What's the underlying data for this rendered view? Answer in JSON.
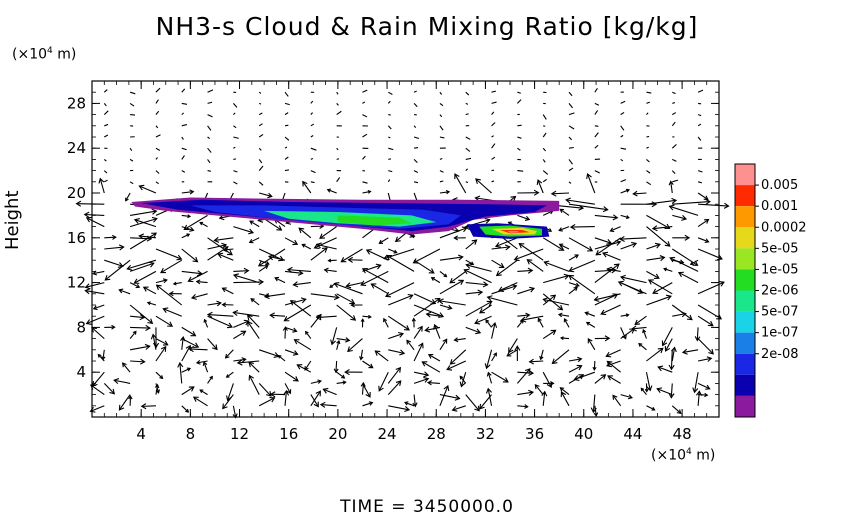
{
  "title": "NH3-s Cloud & Rain Mixing Ratio [kg/kg]",
  "y_unit_prefix": "(×10",
  "y_unit_exp": "4",
  "y_unit_suffix": " m)",
  "x_unit_prefix": "(×10",
  "x_unit_exp": "4",
  "x_unit_suffix": " m)",
  "time_label": "TIME  =  3450000.0",
  "colors": {
    "levels": [
      "#8b1a9e",
      "#0a00b0",
      "#1a28e6",
      "#1a7fe6",
      "#1ad3e6",
      "#1ae68a",
      "#22dd22",
      "#9be622",
      "#e6d81a",
      "#ff9900",
      "#ff2a00",
      "#ff9090"
    ]
  },
  "chart_data": {
    "type": "contour",
    "title": "NH3-s Cloud & Rain Mixing Ratio [kg/kg]",
    "xlabel": "",
    "ylabel": "Height",
    "xlim": [
      0,
      51
    ],
    "ylim": [
      0,
      30
    ],
    "xticks": [
      "4",
      "8",
      "12",
      "16",
      "20",
      "24",
      "28",
      "32",
      "36",
      "40",
      "44",
      "48"
    ],
    "yticks": [
      "4",
      "8",
      "12",
      "16",
      "20",
      "24",
      "28"
    ],
    "colorbar_labels": [
      "0.005",
      "0.001",
      "0.0002",
      "5e-05",
      "1e-05",
      "2e-06",
      "5e-07",
      "1e-07",
      "2e-08"
    ],
    "cloud_layer": {
      "x_range": [
        3,
        38
      ],
      "y_range": [
        16,
        19.3
      ]
    },
    "max_region": {
      "x_range": [
        32,
        37
      ],
      "y_range": [
        16,
        17.2
      ]
    },
    "vector_field": "wind arrows over full domain"
  }
}
